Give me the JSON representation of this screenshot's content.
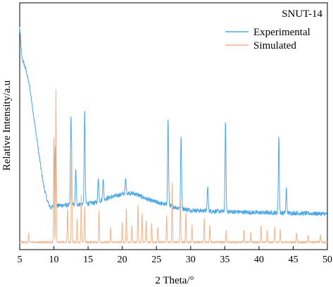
{
  "chart_data": {
    "type": "line",
    "title": "SNUT-14",
    "xlabel": "2 Theta/°",
    "ylabel": "Relative Intensity/a.u",
    "xlim": [
      5,
      50
    ],
    "xticks": [
      5,
      10,
      15,
      20,
      25,
      30,
      35,
      40,
      45,
      50
    ],
    "y_ticks_shown": false,
    "legend_position": "top-right",
    "series": [
      {
        "name": "Experimental",
        "color": "#4aa8e8",
        "baseline": [
          [
            5,
            0.9
          ],
          [
            5.3,
            0.78
          ],
          [
            6,
            0.72
          ],
          [
            6.5,
            0.65
          ],
          [
            7,
            0.55
          ],
          [
            7.5,
            0.45
          ],
          [
            8,
            0.35
          ],
          [
            8.5,
            0.26
          ],
          [
            9,
            0.2
          ],
          [
            9.5,
            0.17
          ],
          [
            10,
            0.175
          ],
          [
            11,
            0.18
          ],
          [
            12,
            0.18
          ],
          [
            14,
            0.185
          ],
          [
            16,
            0.19
          ],
          [
            18,
            0.21
          ],
          [
            20,
            0.225
          ],
          [
            21,
            0.23
          ],
          [
            22,
            0.225
          ],
          [
            24,
            0.2
          ],
          [
            26,
            0.185
          ],
          [
            28,
            0.17
          ],
          [
            30,
            0.16
          ],
          [
            34,
            0.155
          ],
          [
            40,
            0.15
          ],
          [
            45,
            0.148
          ],
          [
            50,
            0.145
          ]
        ],
        "peaks": [
          [
            10.2,
            0.25
          ],
          [
            12.5,
            0.36
          ],
          [
            13.2,
            0.14
          ],
          [
            14.5,
            0.38
          ],
          [
            16.5,
            0.1
          ],
          [
            17.2,
            0.09
          ],
          [
            20.5,
            0.06
          ],
          [
            26.7,
            0.35
          ],
          [
            28.6,
            0.29
          ],
          [
            32.5,
            0.1
          ],
          [
            35.1,
            0.36
          ],
          [
            42.9,
            0.31
          ],
          [
            44.0,
            0.1
          ]
        ]
      },
      {
        "name": "Simulated",
        "color": "#f2b48c",
        "baseline": [
          [
            5,
            0.03
          ],
          [
            50,
            0.03
          ]
        ],
        "peaks": [
          [
            6.3,
            0.04
          ],
          [
            10.0,
            0.44
          ],
          [
            10.3,
            0.62
          ],
          [
            12.0,
            0.14
          ],
          [
            12.6,
            0.43
          ],
          [
            13.4,
            0.1
          ],
          [
            14.0,
            0.19
          ],
          [
            14.5,
            0.15
          ],
          [
            16.6,
            0.13
          ],
          [
            18.3,
            0.06
          ],
          [
            20.0,
            0.08
          ],
          [
            20.6,
            0.14
          ],
          [
            21.4,
            0.07
          ],
          [
            22.3,
            0.15
          ],
          [
            22.9,
            0.12
          ],
          [
            23.5,
            0.09
          ],
          [
            24.3,
            0.08
          ],
          [
            25.2,
            0.06
          ],
          [
            26.5,
            0.11
          ],
          [
            27.3,
            0.24
          ],
          [
            28.5,
            0.18
          ],
          [
            29.3,
            0.12
          ],
          [
            30.2,
            0.07
          ],
          [
            32.0,
            0.1
          ],
          [
            32.8,
            0.07
          ],
          [
            35.2,
            0.05
          ],
          [
            37.8,
            0.05
          ],
          [
            38.8,
            0.04
          ],
          [
            40.3,
            0.07
          ],
          [
            41.2,
            0.05
          ],
          [
            42.3,
            0.06
          ],
          [
            43.1,
            0.05
          ],
          [
            45.5,
            0.04
          ],
          [
            47.2,
            0.03
          ],
          [
            49.0,
            0.03
          ]
        ]
      }
    ]
  }
}
